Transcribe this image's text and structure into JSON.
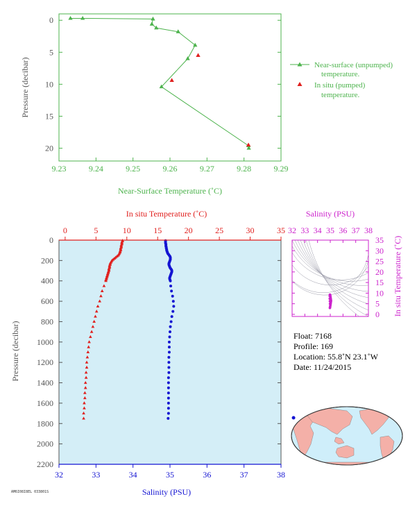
{
  "colors": {
    "green": "#4db34d",
    "red": "#e0201e",
    "blue": "#1414d2",
    "magenta": "#cc22cc",
    "axis_dark": "#555555",
    "panel_fill": "#d4eef7",
    "ocean": "#cfeefa",
    "land": "#f4b0a8"
  },
  "chart_data": [
    {
      "type": "line",
      "id": "near-surface",
      "xlabel": "Near-Surface Temperature (˚C)",
      "ylabel": "Pressure (decibar)",
      "xlim": [
        9.23,
        9.29
      ],
      "ylim": [
        22,
        -1
      ],
      "xticks": [
        "9.23",
        "9.24",
        "9.25",
        "9.26",
        "9.27",
        "9.28",
        "9.29"
      ],
      "yticks": [
        "0",
        "5",
        "10",
        "15",
        "20"
      ],
      "legend_position": "right",
      "series": [
        {
          "name": "Near-surface (unpumped) temperature.",
          "marker": "triangle",
          "line": true,
          "x": [
            9.2331,
            9.2364,
            9.2554,
            9.2551,
            9.2563,
            9.2622,
            9.2668,
            9.2648,
            9.2577,
            9.2812,
            9.2813
          ],
          "y": [
            -0.3,
            -0.3,
            -0.2,
            0.6,
            1.2,
            1.8,
            3.9,
            6.0,
            10.4,
            19.6,
            20.0
          ]
        },
        {
          "name": "In situ (pumped) temperature.",
          "marker": "triangle",
          "line": false,
          "x": [
            9.2676,
            9.2605,
            9.2812
          ],
          "y": [
            5.5,
            9.4,
            19.5
          ]
        }
      ]
    },
    {
      "type": "scatter",
      "id": "profile",
      "xlabel_top": "In situ Temperature (˚C)",
      "xlabel_bottom": "Salinity (PSU)",
      "ylabel": "Pressure (decibar)",
      "temperature_lim": [
        -1,
        35
      ],
      "salinity_lim": [
        32,
        38
      ],
      "ylim": [
        2200,
        0
      ],
      "temperature_ticks": [
        "0",
        "5",
        "10",
        "15",
        "20",
        "25",
        "30",
        "35"
      ],
      "salinity_ticks": [
        "32",
        "33",
        "34",
        "35",
        "36",
        "37",
        "38"
      ],
      "pressure_ticks": [
        "0",
        "200",
        "400",
        "600",
        "800",
        "1000",
        "1200",
        "1400",
        "1600",
        "1800",
        "2000",
        "2200"
      ],
      "temperature_profile": {
        "pressure": [
          5,
          10,
          20,
          30,
          40,
          50,
          60,
          70,
          80,
          90,
          100,
          110,
          120,
          130,
          140,
          150,
          160,
          170,
          180,
          190,
          200,
          210,
          220,
          230,
          240,
          250,
          260,
          270,
          280,
          290,
          300,
          310,
          320,
          330,
          340,
          350,
          360,
          370,
          380,
          390,
          400,
          450,
          500,
          550,
          600,
          650,
          700,
          750,
          800,
          850,
          900,
          950,
          1000,
          1050,
          1100,
          1150,
          1200,
          1250,
          1300,
          1350,
          1400,
          1450,
          1500,
          1550,
          1600,
          1650,
          1700,
          1750
        ],
        "temperature": [
          9.3,
          9.3,
          9.2,
          9.2,
          9.2,
          9.1,
          9.1,
          9.1,
          9.0,
          9.0,
          9.0,
          8.9,
          8.9,
          8.8,
          8.7,
          8.6,
          8.4,
          8.2,
          8.0,
          7.8,
          7.6,
          7.5,
          7.4,
          7.3,
          7.3,
          7.2,
          7.2,
          7.2,
          7.1,
          7.1,
          7.1,
          7.0,
          7.0,
          6.9,
          6.9,
          6.8,
          6.8,
          6.7,
          6.7,
          6.6,
          6.6,
          6.3,
          6.0,
          5.8,
          5.6,
          5.3,
          5.1,
          4.9,
          4.7,
          4.5,
          4.3,
          4.1,
          3.9,
          3.8,
          3.7,
          3.6,
          3.5,
          3.5,
          3.4,
          3.4,
          3.3,
          3.3,
          3.2,
          3.2,
          3.1,
          3.1,
          3.0,
          3.0
        ]
      },
      "salinity_profile": {
        "pressure": [
          5,
          10,
          20,
          30,
          40,
          50,
          60,
          70,
          80,
          90,
          100,
          110,
          120,
          130,
          140,
          150,
          160,
          170,
          180,
          190,
          200,
          210,
          220,
          230,
          240,
          250,
          260,
          270,
          280,
          290,
          300,
          310,
          320,
          330,
          340,
          350,
          360,
          370,
          380,
          390,
          400,
          450,
          500,
          550,
          600,
          650,
          700,
          750,
          800,
          850,
          900,
          950,
          1000,
          1050,
          1100,
          1150,
          1200,
          1250,
          1300,
          1350,
          1400,
          1450,
          1500,
          1550,
          1600,
          1650,
          1700,
          1750
        ],
        "salinity": [
          34.88,
          34.88,
          34.88,
          34.88,
          34.89,
          34.89,
          34.89,
          34.9,
          34.9,
          34.91,
          34.91,
          34.92,
          34.93,
          34.94,
          34.96,
          34.98,
          35.0,
          35.01,
          35.01,
          35.01,
          35.0,
          34.99,
          34.98,
          34.97,
          34.97,
          34.98,
          34.99,
          35.0,
          35.02,
          35.04,
          35.05,
          35.05,
          35.04,
          35.03,
          35.02,
          35.01,
          35.0,
          34.99,
          34.99,
          35.0,
          35.01,
          35.02,
          35.04,
          35.07,
          35.09,
          35.1,
          35.08,
          35.05,
          35.03,
          35.01,
          35.0,
          34.99,
          34.98,
          34.98,
          34.98,
          34.97,
          34.97,
          34.97,
          34.97,
          34.96,
          34.96,
          34.96,
          34.96,
          34.96,
          34.96,
          34.96,
          34.96,
          34.95
        ]
      }
    },
    {
      "type": "scatter",
      "id": "ts-diagram",
      "xlabel": "Salinity (PSU)",
      "ylabel": "In situ Temperature (˚C)",
      "xlim": [
        32,
        38
      ],
      "ylim": [
        -1,
        35
      ],
      "xticks": [
        "32",
        "33",
        "34",
        "35",
        "36",
        "37",
        "38"
      ],
      "yticks": [
        "0",
        "5",
        "10",
        "15",
        "20",
        "25",
        "30",
        "35"
      ],
      "points": {
        "salinity": [
          34.97,
          34.98,
          34.99,
          35.0,
          35.01,
          35.02,
          35.03,
          35.04,
          35.05,
          35.06,
          35.05,
          35.04,
          35.03,
          35.02,
          35.01,
          35.0,
          34.99,
          34.98,
          34.97,
          34.96,
          34.96,
          34.97,
          34.98
        ],
        "temperature": [
          3.0,
          3.3,
          3.6,
          4.0,
          4.4,
          4.8,
          5.2,
          5.6,
          6.0,
          6.4,
          6.8,
          7.2,
          7.6,
          8.0,
          8.4,
          8.8,
          9.1,
          9.3,
          9.2,
          8.6,
          7.4,
          6.2,
          5.0
        ]
      }
    }
  ],
  "info": {
    "float": "Float:  7168",
    "profile": "Profile:  169",
    "location": "Location:  55.8˚N  23.1˚W",
    "date": "Date:  11/24/2015"
  },
  "map": {
    "marker_lat": 55.8,
    "marker_lon": -23.1
  },
  "footer_code": "AM6I08I8EL 033801S"
}
